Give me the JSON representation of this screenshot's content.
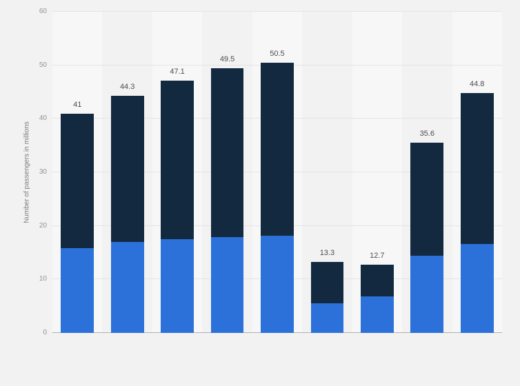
{
  "chart_data": {
    "type": "bar",
    "stacked": true,
    "title": "",
    "ylabel": "Number of passengers in millions",
    "ylim": [
      0,
      60
    ],
    "yticks": [
      0,
      10,
      20,
      30,
      40,
      50,
      60
    ],
    "grid": true,
    "legend": "none",
    "series": [
      {
        "name": "lower segment",
        "color": "#2b71d9",
        "values": [
          15.8,
          17.0,
          17.5,
          17.9,
          18.2,
          5.5,
          6.8,
          14.4,
          16.6
        ]
      },
      {
        "name": "upper segment",
        "color": "#132940",
        "values": [
          25.2,
          27.3,
          29.6,
          31.6,
          32.3,
          7.8,
          5.9,
          21.2,
          28.2
        ]
      }
    ],
    "totals": [
      41,
      44.3,
      47.1,
      49.5,
      50.5,
      13.3,
      12.7,
      35.6,
      44.8
    ],
    "total_labels": [
      "41",
      "44.3",
      "47.1",
      "49.5",
      "50.5",
      "13.3",
      "12.7",
      "35.6",
      "44.8"
    ]
  },
  "palette": {
    "background": "#f2f2f2",
    "column_band": "#f7f7f7",
    "gridline": "#e4e4e4",
    "axis_line": "#b0b0b0",
    "bar_blue": "#2b71d9",
    "bar_dark": "#132940",
    "value_label_text": "#4c4c4c",
    "tick_text": "#919191"
  }
}
